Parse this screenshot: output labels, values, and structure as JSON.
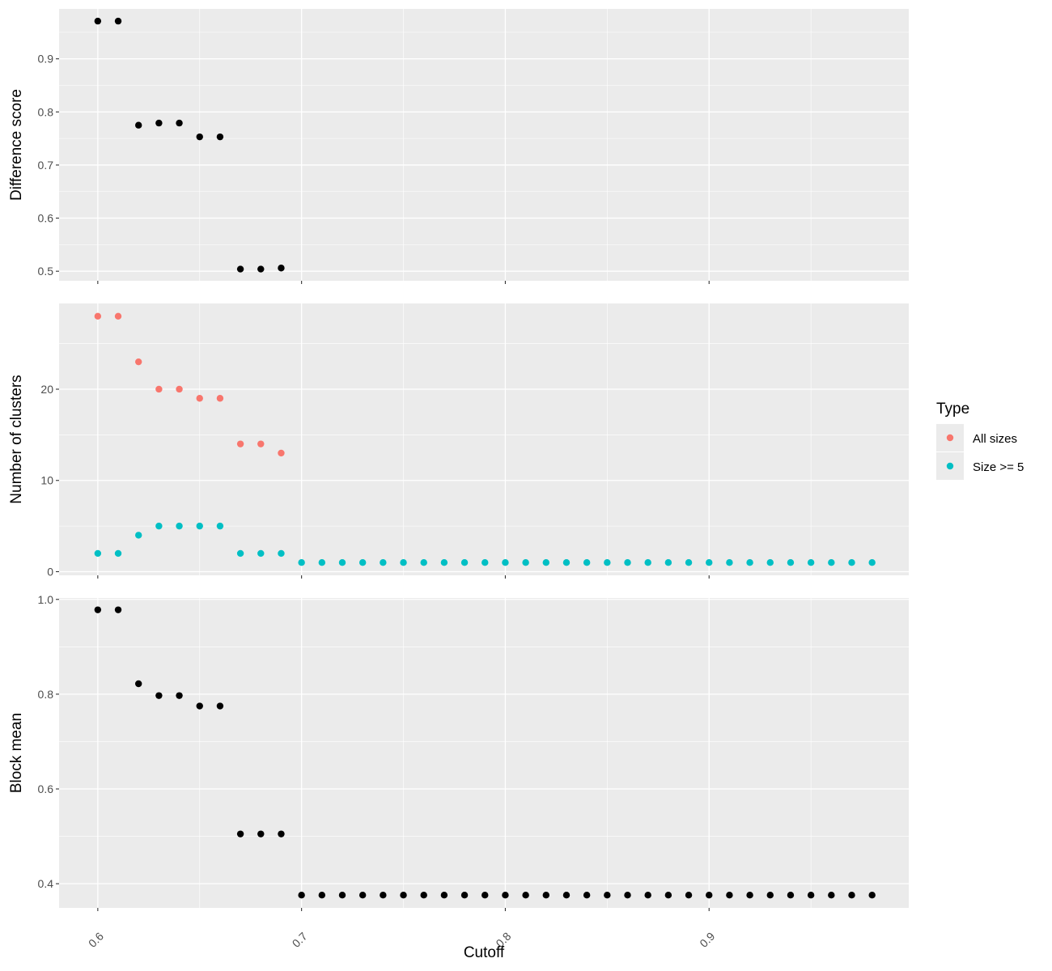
{
  "chart_data": {
    "type": "scatter",
    "xlabel": "Cutoff",
    "x_ticks": [
      0.6,
      0.7,
      0.8,
      0.9
    ],
    "x_tick_labels": [
      "0.6",
      "0.7",
      "0.8",
      "0.9"
    ],
    "xlim": [
      0.581,
      0.998
    ],
    "grid": true,
    "legend": {
      "title": "Type",
      "position": "right",
      "entries": [
        {
          "name": "All sizes",
          "color": "#F8766D"
        },
        {
          "name": "Size >= 5",
          "color": "#00BFC4"
        }
      ]
    },
    "panels": [
      {
        "ylabel": "Difference score",
        "ylim": [
          0.482,
          0.994
        ],
        "y_ticks": [
          0.5,
          0.6,
          0.7,
          0.8,
          0.9
        ],
        "y_tick_labels": [
          "0.5",
          "0.6",
          "0.7",
          "0.8",
          "0.9"
        ],
        "series": [
          {
            "color": "#000000",
            "x": [
              0.6,
              0.61,
              0.62,
              0.63,
              0.64,
              0.65,
              0.66,
              0.67,
              0.68,
              0.69
            ],
            "y": [
              0.971,
              0.971,
              0.775,
              0.779,
              0.779,
              0.753,
              0.753,
              0.504,
              0.504,
              0.506
            ]
          }
        ]
      },
      {
        "ylabel": "Number of clusters",
        "ylim": [
          -0.4,
          29.4
        ],
        "y_ticks": [
          0,
          10,
          20
        ],
        "y_tick_labels": [
          "0",
          "10",
          "20"
        ],
        "series": [
          {
            "name": "All sizes",
            "color": "#F8766D",
            "x": [
              0.6,
              0.61,
              0.62,
              0.63,
              0.64,
              0.65,
              0.66,
              0.67,
              0.68,
              0.69
            ],
            "y": [
              28,
              28,
              23,
              20,
              20,
              19,
              19,
              14,
              14,
              13
            ]
          },
          {
            "name": "Size >= 5",
            "color": "#00BFC4",
            "x": [
              0.6,
              0.61,
              0.62,
              0.63,
              0.64,
              0.65,
              0.66,
              0.67,
              0.68,
              0.69,
              0.7,
              0.71,
              0.72,
              0.73,
              0.74,
              0.75,
              0.76,
              0.77,
              0.78,
              0.79,
              0.8,
              0.81,
              0.82,
              0.83,
              0.84,
              0.85,
              0.86,
              0.87,
              0.88,
              0.89,
              0.9,
              0.91,
              0.92,
              0.93,
              0.94,
              0.95,
              0.96,
              0.97,
              0.98
            ],
            "y": [
              2,
              2,
              4,
              5,
              5,
              5,
              5,
              2,
              2,
              2,
              1,
              1,
              1,
              1,
              1,
              1,
              1,
              1,
              1,
              1,
              1,
              1,
              1,
              1,
              1,
              1,
              1,
              1,
              1,
              1,
              1,
              1,
              1,
              1,
              1,
              1,
              1,
              1,
              1
            ]
          }
        ]
      },
      {
        "ylabel": "Block mean",
        "ylim": [
          0.349,
          1.003
        ],
        "y_ticks": [
          0.4,
          0.6,
          0.8,
          1.0
        ],
        "y_tick_labels": [
          "0.4",
          "0.6",
          "0.8",
          "1.0"
        ],
        "series": [
          {
            "color": "#000000",
            "x": [
              0.6,
              0.61,
              0.62,
              0.63,
              0.64,
              0.65,
              0.66,
              0.67,
              0.68,
              0.69,
              0.7,
              0.71,
              0.72,
              0.73,
              0.74,
              0.75,
              0.76,
              0.77,
              0.78,
              0.79,
              0.8,
              0.81,
              0.82,
              0.83,
              0.84,
              0.85,
              0.86,
              0.87,
              0.88,
              0.89,
              0.9,
              0.91,
              0.92,
              0.93,
              0.94,
              0.95,
              0.96,
              0.97,
              0.98
            ],
            "y": [
              0.978,
              0.978,
              0.822,
              0.797,
              0.797,
              0.775,
              0.775,
              0.505,
              0.505,
              0.505,
              0.376,
              0.376,
              0.376,
              0.376,
              0.376,
              0.376,
              0.376,
              0.376,
              0.376,
              0.376,
              0.376,
              0.376,
              0.376,
              0.376,
              0.376,
              0.376,
              0.376,
              0.376,
              0.376,
              0.376,
              0.376,
              0.376,
              0.376,
              0.376,
              0.376,
              0.376,
              0.376,
              0.376,
              0.376
            ]
          }
        ]
      }
    ]
  }
}
